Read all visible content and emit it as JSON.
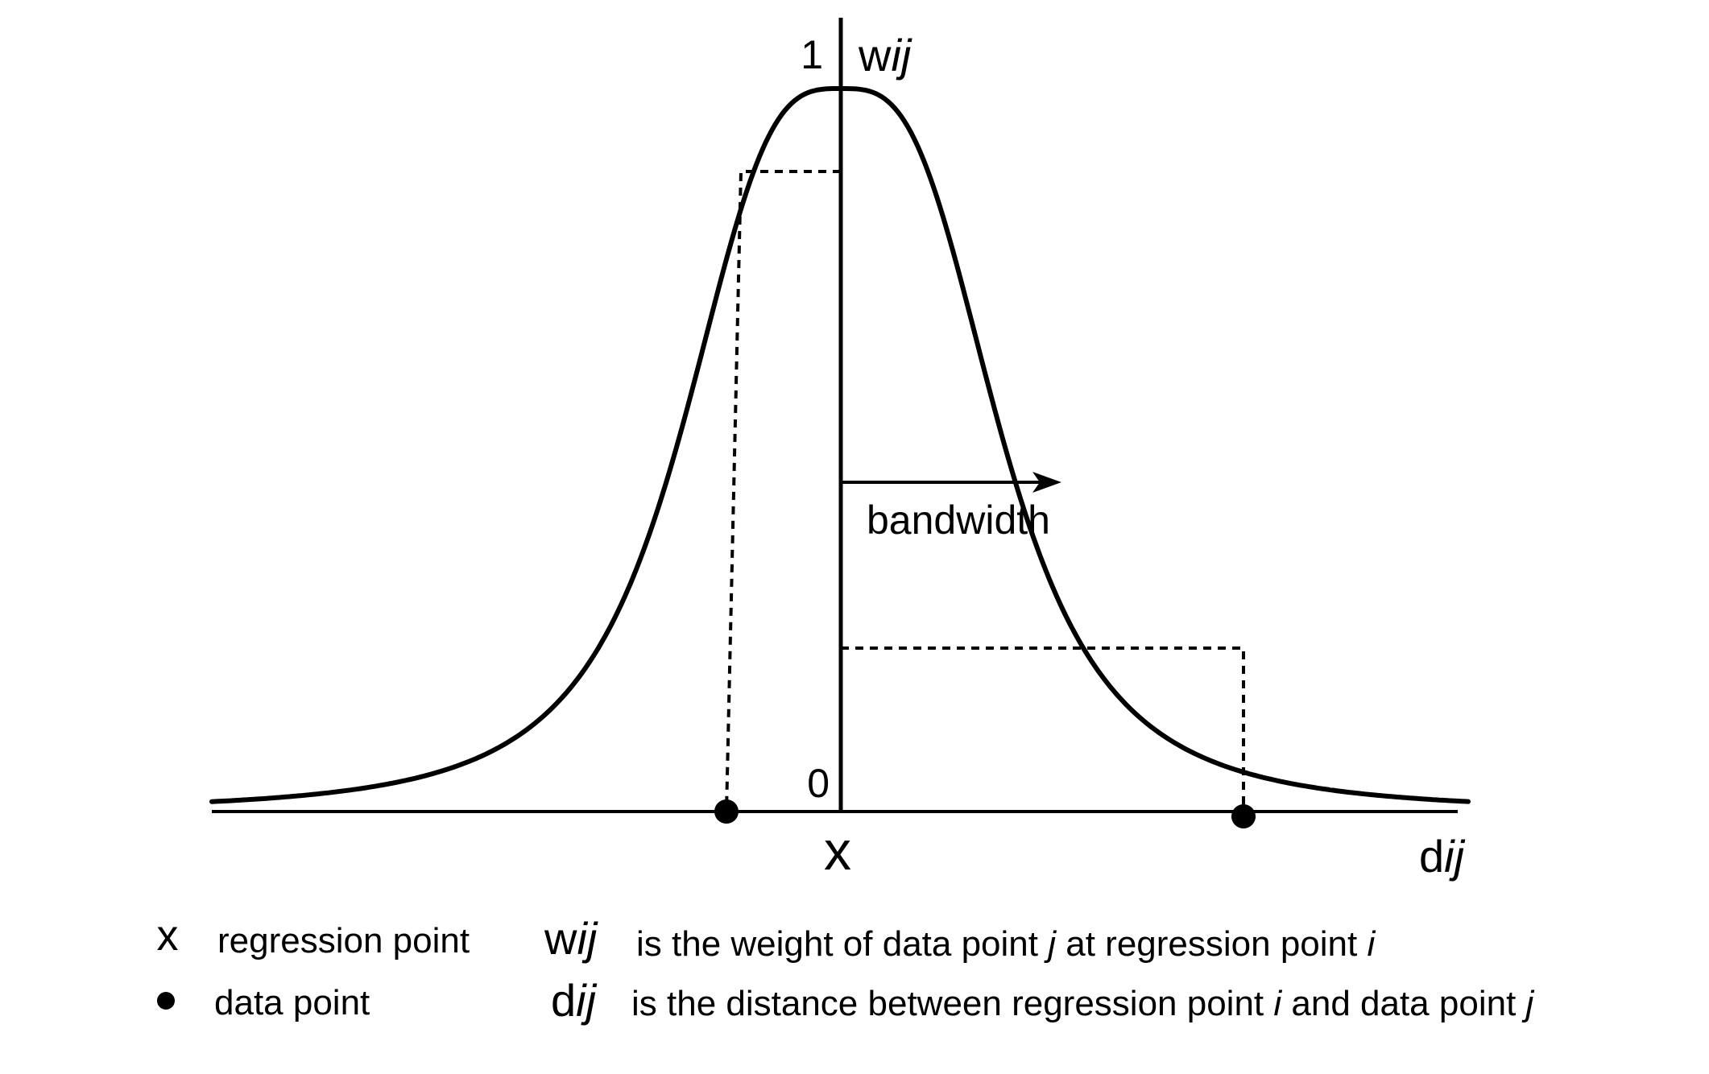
{
  "axis": {
    "y_top_label": "1",
    "y_zero_label": "0",
    "y_name_main": "w",
    "y_name_sub": "ij",
    "x_name_main": "d",
    "x_name_sub": "ij",
    "origin_marker": "x"
  },
  "annotation": {
    "bandwidth_label": "bandwidth"
  },
  "legend": {
    "regression_marker": "x",
    "regression_label": "regression point",
    "data_label": "data point",
    "w_def": {
      "sym_main": "w",
      "sym_sub": "ij",
      "parts": [
        "is the weight of data point ",
        "j",
        " at regression point ",
        "i"
      ]
    },
    "d_def": {
      "sym_main": "d",
      "sym_sub": "ij",
      "parts": [
        "is the distance between regression point ",
        "i",
        " and data point ",
        "j"
      ]
    }
  },
  "colors": {
    "ink": "#000000",
    "background": "#ffffff"
  }
}
